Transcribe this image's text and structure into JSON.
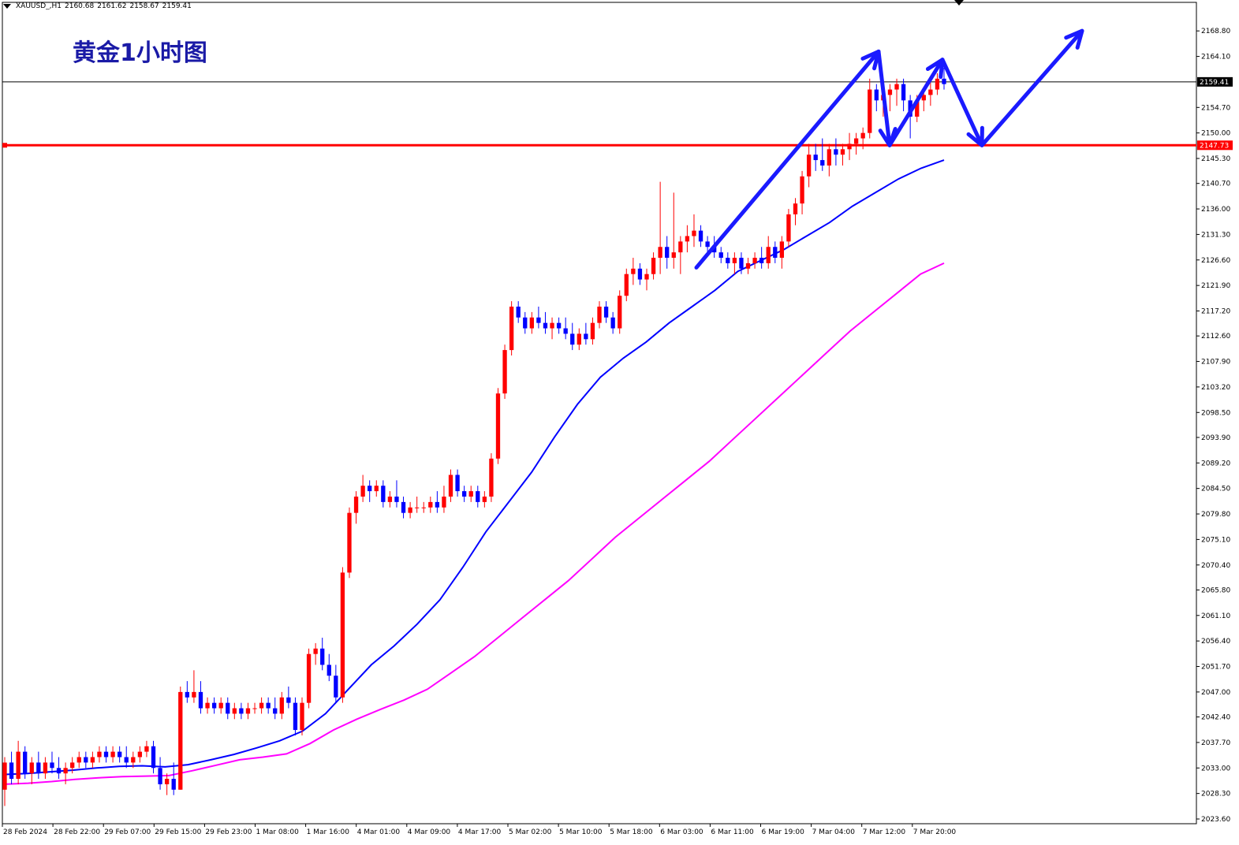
{
  "header": {
    "symbol": "XAUUSD_,H1",
    "open": "2160.68",
    "high": "2161.62",
    "low": "2158.67",
    "close": "2159.41"
  },
  "title": "黄金1小时图",
  "colors": {
    "bull": "#ff0000",
    "bear": "#0000ff",
    "ma_blue": "#0000ff",
    "ma_magenta": "#ff00ff",
    "support": "#ff0000",
    "arrows": "#1a1aff",
    "title": "#1a1aa6"
  },
  "chart_data": {
    "type": "candlestick",
    "title": "黄金1小时图",
    "symbol": "XAUUSD_,H1",
    "ylim": [
      2023.6,
      2171.3
    ],
    "y_ticks": [
      "2168.80",
      "2164.10",
      "2159.41",
      "2154.70",
      "2150.00",
      "2147.73",
      "2145.30",
      "2140.70",
      "2136.00",
      "2131.30",
      "2126.60",
      "2121.90",
      "2117.20",
      "2112.60",
      "2107.90",
      "2103.20",
      "2098.50",
      "2093.90",
      "2089.20",
      "2084.50",
      "2079.80",
      "2075.10",
      "2070.40",
      "2065.80",
      "2061.10",
      "2056.40",
      "2051.70",
      "2047.00",
      "2042.40",
      "2037.70",
      "2033.00",
      "2028.30",
      "2023.60"
    ],
    "x_ticks": [
      "28 Feb 2024",
      "28 Feb 22:00",
      "29 Feb 07:00",
      "29 Feb 15:00",
      "29 Feb 23:00",
      "1 Mar 08:00",
      "1 Mar 16:00",
      "4 Mar 01:00",
      "4 Mar 09:00",
      "4 Mar 17:00",
      "5 Mar 02:00",
      "5 Mar 10:00",
      "5 Mar 18:00",
      "6 Mar 03:00",
      "6 Mar 11:00",
      "6 Mar 19:00",
      "7 Mar 04:00",
      "7 Mar 12:00",
      "7 Mar 20:00"
    ],
    "current_price": 2159.41,
    "support_level": 2147.73,
    "candles_ohlc": [
      [
        2029,
        2035,
        2026,
        2034
      ],
      [
        2034,
        2036,
        2030,
        2031
      ],
      [
        2031,
        2038,
        2030,
        2036
      ],
      [
        2036,
        2037,
        2031,
        2032
      ],
      [
        2032,
        2035,
        2030,
        2034
      ],
      [
        2034,
        2036,
        2031,
        2032
      ],
      [
        2032,
        2035,
        2031,
        2034
      ],
      [
        2034,
        2036,
        2032,
        2033
      ],
      [
        2033,
        2035,
        2031,
        2032
      ],
      [
        2032,
        2034,
        2030,
        2033
      ],
      [
        2033,
        2035,
        2032,
        2034
      ],
      [
        2034,
        2036,
        2033,
        2035
      ],
      [
        2035,
        2036,
        2033,
        2034
      ],
      [
        2034,
        2036,
        2033,
        2035
      ],
      [
        2035,
        2037,
        2034,
        2036
      ],
      [
        2036,
        2037,
        2034,
        2035
      ],
      [
        2035,
        2037,
        2034,
        2036
      ],
      [
        2036,
        2037,
        2034,
        2035
      ],
      [
        2035,
        2037,
        2033,
        2034
      ],
      [
        2034,
        2036,
        2033,
        2035
      ],
      [
        2035,
        2037,
        2034,
        2036
      ],
      [
        2036,
        2038,
        2035,
        2037
      ],
      [
        2037,
        2038,
        2032,
        2033
      ],
      [
        2033,
        2035,
        2029,
        2030
      ],
      [
        2030,
        2032,
        2028,
        2031
      ],
      [
        2031,
        2034,
        2028,
        2029
      ],
      [
        2029,
        2048,
        2029,
        2047
      ],
      [
        2047,
        2049,
        2045,
        2046
      ],
      [
        2046,
        2051,
        2045,
        2047
      ],
      [
        2047,
        2049,
        2043,
        2044
      ],
      [
        2044,
        2046,
        2043,
        2045
      ],
      [
        2045,
        2046,
        2043,
        2044
      ],
      [
        2044,
        2046,
        2043,
        2045
      ],
      [
        2045,
        2046,
        2042,
        2043
      ],
      [
        2043,
        2045,
        2042,
        2044
      ],
      [
        2044,
        2045,
        2042,
        2043
      ],
      [
        2043,
        2045,
        2042,
        2044
      ],
      [
        2044,
        2045,
        2043,
        2044
      ],
      [
        2044,
        2046,
        2043,
        2045
      ],
      [
        2045,
        2046,
        2043,
        2044
      ],
      [
        2044,
        2046,
        2042,
        2043
      ],
      [
        2043,
        2047,
        2042,
        2046
      ],
      [
        2046,
        2048,
        2044,
        2045
      ],
      [
        2045,
        2046,
        2039,
        2040
      ],
      [
        2040,
        2046,
        2039,
        2045
      ],
      [
        2045,
        2055,
        2044,
        2054
      ],
      [
        2054,
        2056,
        2052,
        2055
      ],
      [
        2055,
        2057,
        2051,
        2052
      ],
      [
        2052,
        2054,
        2049,
        2050
      ],
      [
        2050,
        2052,
        2045,
        2046
      ],
      [
        2046,
        2070,
        2045,
        2069
      ],
      [
        2069,
        2081,
        2068,
        2080
      ],
      [
        2080,
        2084,
        2078,
        2083
      ],
      [
        2083,
        2087,
        2082,
        2085
      ],
      [
        2085,
        2086,
        2082,
        2084
      ],
      [
        2084,
        2086,
        2083,
        2085
      ],
      [
        2085,
        2086,
        2081,
        2082
      ],
      [
        2082,
        2084,
        2081,
        2083
      ],
      [
        2083,
        2086,
        2081,
        2082
      ],
      [
        2082,
        2083,
        2079,
        2080
      ],
      [
        2080,
        2082,
        2079,
        2081
      ],
      [
        2081,
        2083,
        2080,
        2081
      ],
      [
        2081,
        2082,
        2080,
        2081
      ],
      [
        2081,
        2083,
        2080,
        2082
      ],
      [
        2082,
        2084,
        2080,
        2081
      ],
      [
        2081,
        2085,
        2080,
        2083
      ],
      [
        2083,
        2088,
        2082,
        2087
      ],
      [
        2087,
        2088,
        2083,
        2084
      ],
      [
        2084,
        2085,
        2082,
        2083
      ],
      [
        2083,
        2085,
        2082,
        2084
      ],
      [
        2084,
        2085,
        2081,
        2082
      ],
      [
        2082,
        2084,
        2081,
        2083
      ],
      [
        2083,
        2091,
        2082,
        2090
      ],
      [
        2090,
        2103,
        2089,
        2102
      ],
      [
        2102,
        2111,
        2101,
        2110
      ],
      [
        2110,
        2119,
        2109,
        2118
      ],
      [
        2118,
        2119,
        2115,
        2116
      ],
      [
        2116,
        2117,
        2113,
        2114
      ],
      [
        2114,
        2117,
        2113,
        2116
      ],
      [
        2116,
        2118,
        2114,
        2115
      ],
      [
        2115,
        2117,
        2113,
        2114
      ],
      [
        2114,
        2116,
        2112,
        2115
      ],
      [
        2115,
        2116,
        2113,
        2114
      ],
      [
        2114,
        2116,
        2112,
        2113
      ],
      [
        2113,
        2115,
        2110,
        2111
      ],
      [
        2111,
        2114,
        2110,
        2113
      ],
      [
        2113,
        2115,
        2111,
        2112
      ],
      [
        2112,
        2116,
        2111,
        2115
      ],
      [
        2115,
        2119,
        2114,
        2118
      ],
      [
        2118,
        2119,
        2115,
        2116
      ],
      [
        2116,
        2117,
        2113,
        2114
      ],
      [
        2114,
        2121,
        2113,
        2120
      ],
      [
        2120,
        2125,
        2119,
        2124
      ],
      [
        2124,
        2127,
        2122,
        2125
      ],
      [
        2125,
        2126,
        2122,
        2123
      ],
      [
        2123,
        2125,
        2121,
        2124
      ],
      [
        2124,
        2128,
        2123,
        2127
      ],
      [
        2127,
        2141,
        2124,
        2129
      ],
      [
        2129,
        2131,
        2125,
        2127
      ],
      [
        2127,
        2139,
        2125,
        2128
      ],
      [
        2128,
        2131,
        2124,
        2130
      ],
      [
        2130,
        2133,
        2128,
        2131
      ],
      [
        2131,
        2135,
        2129,
        2132
      ],
      [
        2132,
        2133,
        2129,
        2130
      ],
      [
        2130,
        2131,
        2128,
        2129
      ],
      [
        2129,
        2131,
        2127,
        2128
      ],
      [
        2128,
        2129,
        2126,
        2127
      ],
      [
        2127,
        2128,
        2125,
        2126
      ],
      [
        2126,
        2128,
        2124,
        2127
      ],
      [
        2127,
        2128,
        2124,
        2125
      ],
      [
        2125,
        2127,
        2124,
        2126
      ],
      [
        2126,
        2128,
        2125,
        2127
      ],
      [
        2127,
        2129,
        2125,
        2126
      ],
      [
        2126,
        2131,
        2125,
        2129
      ],
      [
        2129,
        2130,
        2126,
        2127
      ],
      [
        2127,
        2131,
        2125,
        2130
      ],
      [
        2130,
        2136,
        2129,
        2135
      ],
      [
        2135,
        2138,
        2133,
        2137
      ],
      [
        2137,
        2143,
        2135,
        2142
      ],
      [
        2142,
        2148,
        2140,
        2146
      ],
      [
        2146,
        2148,
        2143,
        2145
      ],
      [
        2145,
        2149,
        2143,
        2144
      ],
      [
        2144,
        2148,
        2142,
        2147
      ],
      [
        2147,
        2149,
        2144,
        2146
      ],
      [
        2146,
        2148,
        2144,
        2147
      ],
      [
        2147,
        2150,
        2145,
        2148
      ],
      [
        2148,
        2150,
        2146,
        2149
      ],
      [
        2149,
        2151,
        2147,
        2150
      ],
      [
        2150,
        2160,
        2149,
        2158
      ],
      [
        2158,
        2159,
        2154,
        2156
      ],
      [
        2156,
        2158,
        2153,
        2157
      ],
      [
        2157,
        2159,
        2154,
        2158
      ],
      [
        2158,
        2160,
        2155,
        2159
      ],
      [
        2159,
        2160,
        2154,
        2156
      ],
      [
        2156,
        2157,
        2149,
        2153
      ],
      [
        2153,
        2157,
        2152,
        2156
      ],
      [
        2156,
        2158,
        2154,
        2157
      ],
      [
        2157,
        2160,
        2155,
        2158
      ],
      [
        2158,
        2161,
        2157,
        2160
      ],
      [
        2160,
        2162,
        2158,
        2159
      ]
    ],
    "moving_averages": [
      {
        "color": "#0000ff",
        "values": [
          2031.8,
          2032.0,
          2032.3,
          2032.6,
          2033.0,
          2033.3,
          2033.4,
          2033.2,
          2033.6,
          2034.5,
          2035.5,
          2036.7,
          2038.0,
          2039.8,
          2043.0,
          2047.5,
          2052.0,
          2055.5,
          2059.5,
          2064.0,
          2070.0,
          2076.5,
          2082.0,
          2087.5,
          2094.0,
          2100.0,
          2105.0,
          2108.5,
          2111.5,
          2115.0,
          2118.0,
          2121.0,
          2124.5,
          2126.5,
          2128.5,
          2131.0,
          2133.5,
          2136.5,
          2139.0,
          2141.5,
          2143.5,
          2145.0
        ]
      },
      {
        "color": "#ff00ff",
        "values": [
          2030.0,
          2030.2,
          2030.5,
          2030.9,
          2031.2,
          2031.4,
          2031.5,
          2031.6,
          2032.5,
          2033.5,
          2034.5,
          2035.0,
          2035.6,
          2037.5,
          2040.0,
          2042.0,
          2043.8,
          2045.5,
          2047.5,
          2050.5,
          2053.5,
          2057.0,
          2060.5,
          2064.0,
          2067.5,
          2071.5,
          2075.5,
          2079.0,
          2082.5,
          2086.0,
          2089.5,
          2093.5,
          2097.5,
          2101.5,
          2105.5,
          2109.5,
          2113.5,
          2117.0,
          2120.5,
          2124.0,
          2126.0
        ]
      }
    ],
    "annotation_arrows_path": [
      [
        2125.2
      ],
      [
        2165.0
      ],
      [
        2147.73
      ],
      [
        2163.5
      ],
      [
        2147.73
      ],
      [
        2168.8
      ]
    ],
    "legend": "none",
    "grid": false
  }
}
